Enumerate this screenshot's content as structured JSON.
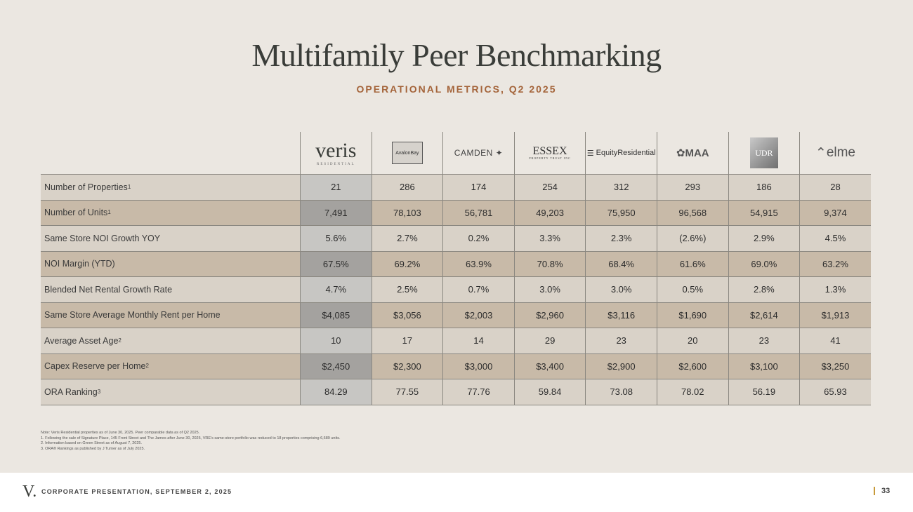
{
  "title": "Multifamily Peer Benchmarking",
  "subtitle": "OPERATIONAL METRICS, Q2 2025",
  "companies": {
    "veris": "veris",
    "veris_sub": "RESIDENTIAL",
    "avalon": "AvalonBay",
    "camden": "CAMDEN",
    "essex": "ESSEX",
    "essex_sub": "PROPERTY TRUST INC",
    "eqr": "EquityResidential",
    "maa": "MAA",
    "udr": "UDR",
    "elme": "elme"
  },
  "rows": [
    {
      "label": "Number of Properties",
      "sup": "1",
      "values": [
        "21",
        "286",
        "174",
        "254",
        "312",
        "293",
        "186",
        "28"
      ]
    },
    {
      "label": "Number of Units",
      "sup": "1",
      "values": [
        "7,491",
        "78,103",
        "56,781",
        "49,203",
        "75,950",
        "96,568",
        "54,915",
        "9,374"
      ]
    },
    {
      "label": "Same Store NOI Growth YOY",
      "sup": "",
      "values": [
        "5.6%",
        "2.7%",
        "0.2%",
        "3.3%",
        "2.3%",
        "(2.6%)",
        "2.9%",
        "4.5%"
      ]
    },
    {
      "label": "NOI Margin (YTD)",
      "sup": "",
      "values": [
        "67.5%",
        "69.2%",
        "63.9%",
        "70.8%",
        "68.4%",
        "61.6%",
        "69.0%",
        "63.2%"
      ]
    },
    {
      "label": "Blended Net Rental Growth Rate",
      "sup": "",
      "values": [
        "4.7%",
        "2.5%",
        "0.7%",
        "3.0%",
        "3.0%",
        "0.5%",
        "2.8%",
        "1.3%"
      ]
    },
    {
      "label": "Same Store Average Monthly Rent per Home",
      "sup": "",
      "values": [
        "$4,085",
        "$3,056",
        "$2,003",
        "$2,960",
        "$3,116",
        "$1,690",
        "$2,614",
        "$1,913"
      ]
    },
    {
      "label": "Average Asset Age",
      "sup": "2",
      "values": [
        "10",
        "17",
        "14",
        "29",
        "23",
        "20",
        "23",
        "41"
      ]
    },
    {
      "label": "Capex Reserve per Home",
      "sup": "2",
      "values": [
        "$2,450",
        "$2,300",
        "$3,000",
        "$3,400",
        "$2,900",
        "$2,600",
        "$3,100",
        "$3,250"
      ]
    },
    {
      "label": "ORA Ranking",
      "sup": "3",
      "values": [
        "84.29",
        "77.55",
        "77.76",
        "59.84",
        "73.08",
        "78.02",
        "56.19",
        "65.93"
      ]
    }
  ],
  "notes": [
    "Note: Veris Residential properties as of June 30, 2025. Peer comparable data as of Q2 2025.",
    "1.      Following the sale of Signature Place, 145 Front Street and The James after June 30, 2025, VRE's same-store portfolio was reduced to 18 properties comprising 6,689 units.",
    "2.      Information based on Green Street as of August 7, 2025.",
    "3.      ORA® Rankings as published by J Turner as of July 2025."
  ],
  "footer": {
    "logo": "V.",
    "text": "CORPORATE PRESENTATION, SEPTEMBER 2, 2025",
    "page": "33"
  }
}
